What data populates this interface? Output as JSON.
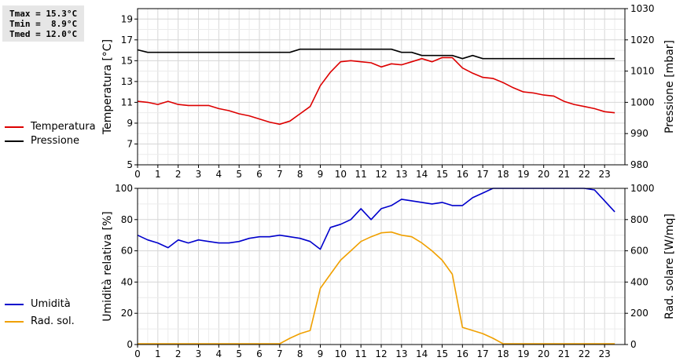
{
  "stats": {
    "tmax": "Tmax = 15.3°C",
    "tmin": "Tmin =  8.9°C",
    "tmed": "Tmed = 12.0°C"
  },
  "legend_top": [
    {
      "label": "Temperatura",
      "color": "#dd0000"
    },
    {
      "label": "Pressione",
      "color": "#000000"
    }
  ],
  "legend_bottom": [
    {
      "label": "Umidità",
      "color": "#0000cc"
    },
    {
      "label": "Rad. sol.",
      "color": "#f0a000"
    }
  ],
  "chart_data": [
    {
      "type": "line",
      "xlim": [
        0,
        24
      ],
      "x_ticks": [
        0,
        1,
        2,
        3,
        4,
        5,
        6,
        7,
        8,
        9,
        10,
        11,
        12,
        13,
        14,
        15,
        16,
        17,
        18,
        19,
        20,
        21,
        22,
        23
      ],
      "x_tick_labels": [
        "0",
        "1",
        "2",
        "3",
        "4",
        "5",
        "6",
        "7",
        "8",
        "9",
        "10",
        "11",
        "12",
        "13",
        "14",
        "15",
        "16",
        "17",
        "18",
        "19",
        "20",
        "21",
        "22",
        "23"
      ],
      "grid": true,
      "ylabel": "Temperatura [°C]",
      "ylim": [
        5,
        20
      ],
      "y_ticks": [
        "5",
        "7",
        "9",
        "11",
        "13",
        "15",
        "17",
        "19"
      ],
      "y2label": "Pressione [mbar]",
      "y2lim": [
        980,
        1030
      ],
      "y2_ticks": [
        "980",
        "990",
        "1000",
        "1010",
        "1020",
        "1030"
      ],
      "series": [
        {
          "name": "Temperatura",
          "axis": "left",
          "color": "#dd0000",
          "x": [
            0,
            0.5,
            1,
            1.5,
            2,
            2.5,
            3,
            3.5,
            4,
            4.5,
            5,
            5.5,
            6,
            6.5,
            7,
            7.5,
            8,
            8.5,
            9,
            9.5,
            10,
            10.5,
            11,
            11.5,
            12,
            12.5,
            13,
            13.5,
            14,
            14.5,
            15,
            15.5,
            16,
            16.5,
            17,
            17.5,
            18,
            18.5,
            19,
            19.5,
            20,
            20.5,
            21,
            21.5,
            22,
            22.5,
            23,
            23.5
          ],
          "y": [
            11.1,
            11.0,
            10.8,
            11.1,
            10.8,
            10.7,
            10.7,
            10.7,
            10.4,
            10.2,
            9.9,
            9.7,
            9.4,
            9.1,
            8.9,
            9.2,
            9.9,
            10.6,
            12.6,
            13.9,
            14.9,
            15.0,
            14.9,
            14.8,
            14.4,
            14.7,
            14.6,
            14.9,
            15.2,
            14.9,
            15.3,
            15.3,
            14.3,
            13.8,
            13.4,
            13.3,
            12.9,
            12.4,
            12.0,
            11.9,
            11.7,
            11.6,
            11.1,
            10.8,
            10.6,
            10.4,
            10.1,
            10.0
          ]
        },
        {
          "name": "Pressione",
          "axis": "right",
          "color": "#000000",
          "x": [
            0,
            0.5,
            1,
            2,
            3,
            4,
            5,
            6,
            7,
            7.5,
            8,
            9,
            10,
            11,
            12,
            12.5,
            13,
            13.5,
            14,
            15,
            15.5,
            16,
            16.5,
            17,
            18,
            19,
            20,
            21,
            22,
            23,
            23.5
          ],
          "y": [
            1016.8,
            1016,
            1016,
            1016,
            1016,
            1016,
            1016,
            1016,
            1016,
            1016,
            1017,
            1017,
            1017,
            1017,
            1017,
            1017,
            1016,
            1016,
            1015,
            1015,
            1015,
            1014,
            1015,
            1014,
            1014,
            1014,
            1014,
            1014,
            1014,
            1014,
            1014
          ]
        }
      ]
    },
    {
      "type": "line",
      "xlim": [
        0,
        24
      ],
      "x_ticks": [
        0,
        1,
        2,
        3,
        4,
        5,
        6,
        7,
        8,
        9,
        10,
        11,
        12,
        13,
        14,
        15,
        16,
        17,
        18,
        19,
        20,
        21,
        22,
        23
      ],
      "x_tick_labels": [
        "0",
        "1",
        "2",
        "3",
        "4",
        "5",
        "6",
        "7",
        "8",
        "9",
        "10",
        "11",
        "12",
        "13",
        "14",
        "15",
        "16",
        "17",
        "18",
        "19",
        "20",
        "21",
        "22",
        "23"
      ],
      "grid": true,
      "ylabel": "Umidità relativa [%]",
      "ylim": [
        0,
        100
      ],
      "y_ticks": [
        "0",
        "20",
        "40",
        "60",
        "80",
        "100"
      ],
      "y2label": "Rad. solare [W/mq]",
      "y2lim": [
        0,
        1000
      ],
      "y2_ticks": [
        "0",
        "200",
        "400",
        "600",
        "800",
        "1000"
      ],
      "series": [
        {
          "name": "Umidità",
          "axis": "left",
          "color": "#0000cc",
          "x": [
            0,
            0.5,
            1,
            1.5,
            2,
            2.5,
            3,
            3.5,
            4,
            4.5,
            5,
            5.5,
            6,
            6.5,
            7,
            7.5,
            8,
            8.5,
            9,
            9.5,
            10,
            10.5,
            11,
            11.5,
            12,
            12.5,
            13,
            13.5,
            14,
            14.5,
            15,
            15.5,
            16,
            16.5,
            17,
            17.5,
            18,
            18.5,
            19,
            19.5,
            20,
            20.5,
            21,
            21.5,
            22,
            22.5,
            23,
            23.5
          ],
          "y": [
            70,
            67,
            65,
            62,
            67,
            65,
            67,
            66,
            65,
            65,
            66,
            68,
            69,
            69,
            70,
            69,
            68,
            66,
            61,
            75,
            77,
            80,
            87,
            80,
            87,
            89,
            93,
            92,
            91,
            90,
            91,
            89,
            89,
            94,
            97,
            100,
            100,
            100,
            100,
            100,
            100,
            100,
            100,
            100,
            100,
            99,
            92,
            85
          ]
        },
        {
          "name": "Rad. sol.",
          "axis": "right",
          "color": "#f0a000",
          "x": [
            0,
            1,
            2,
            3,
            4,
            5,
            6,
            7,
            7.5,
            8,
            8.5,
            9,
            9.5,
            10,
            10.5,
            11,
            11.5,
            12,
            12.5,
            13,
            13.5,
            14,
            14.5,
            15,
            15.5,
            16,
            16.5,
            17,
            17.5,
            18,
            18.5,
            19,
            20,
            21,
            22,
            23,
            23.5
          ],
          "y": [
            5,
            5,
            5,
            5,
            5,
            5,
            5,
            5,
            40,
            70,
            90,
            360,
            450,
            540,
            600,
            660,
            690,
            715,
            720,
            700,
            690,
            650,
            600,
            540,
            450,
            110,
            90,
            70,
            40,
            5,
            5,
            5,
            5,
            5,
            5,
            5,
            5
          ]
        }
      ]
    }
  ]
}
